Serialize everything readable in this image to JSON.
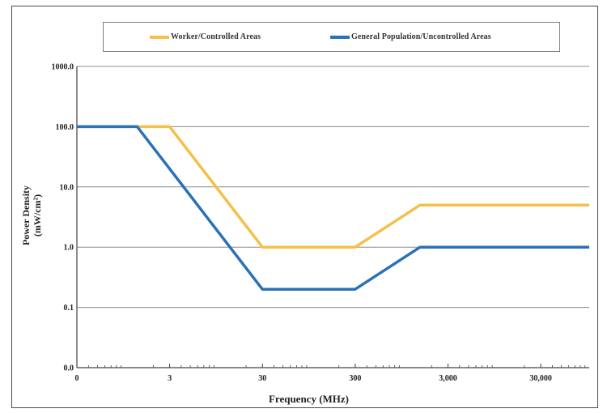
{
  "chart_data": {
    "type": "line",
    "title": "",
    "xlabel": "Frequency (MHz)",
    "ylabel_line1": "Power Density",
    "ylabel_line2": "(mW/cm²)",
    "x_scale": "log",
    "y_scale": "log",
    "xlim": [
      0.3,
      100000
    ],
    "ylim": [
      0.01,
      1000
    ],
    "x_ticks": [
      {
        "value": 0.3,
        "label": "0"
      },
      {
        "value": 3,
        "label": "3"
      },
      {
        "value": 30,
        "label": "30"
      },
      {
        "value": 300,
        "label": "300"
      },
      {
        "value": 3000,
        "label": "3,000"
      },
      {
        "value": 30000,
        "label": "30,000"
      }
    ],
    "y_ticks": [
      {
        "value": 0.01,
        "label": "0.0"
      },
      {
        "value": 0.1,
        "label": "0.1"
      },
      {
        "value": 1,
        "label": "1.0"
      },
      {
        "value": 10,
        "label": "10.0"
      },
      {
        "value": 100,
        "label": "100.0"
      },
      {
        "value": 1000,
        "label": "1000.0"
      }
    ],
    "grid": "horizontal",
    "legend_position": "top",
    "series": [
      {
        "name": "Worker/Controlled Areas",
        "color": "#f5c04a",
        "x": [
          0.3,
          3,
          30,
          300,
          1500,
          100000
        ],
        "y": [
          100,
          100,
          1,
          1,
          5,
          5
        ]
      },
      {
        "name": "General Population/Uncontrolled Areas",
        "color": "#2a72b8",
        "x": [
          0.3,
          1.34,
          30,
          300,
          1500,
          100000
        ],
        "y": [
          100,
          100,
          0.2,
          0.2,
          1,
          1
        ]
      }
    ]
  }
}
